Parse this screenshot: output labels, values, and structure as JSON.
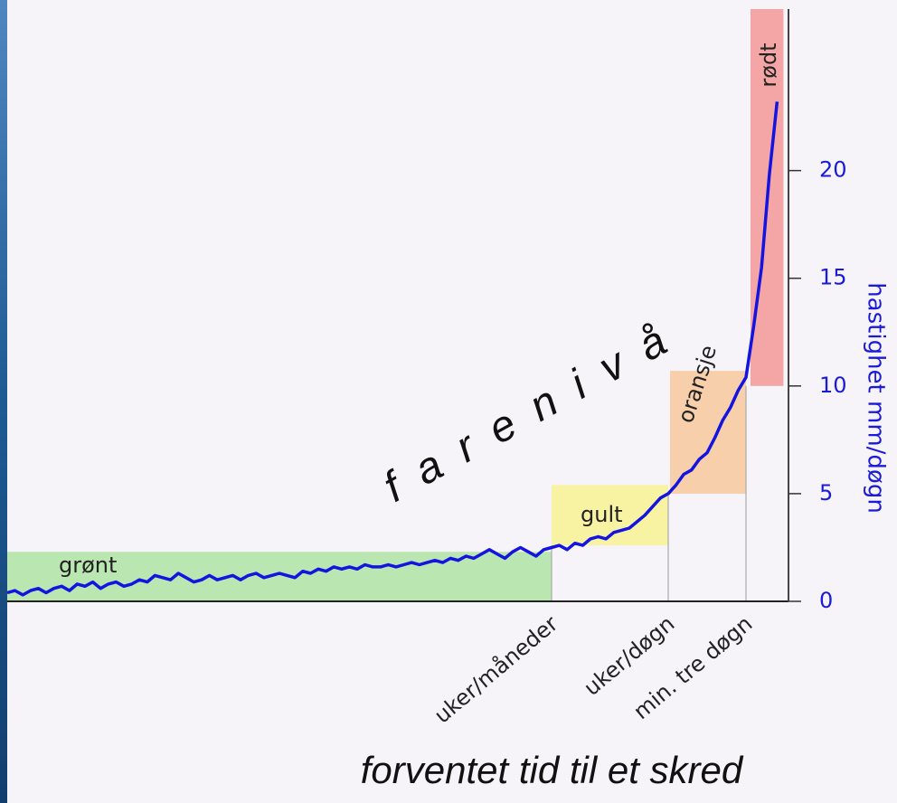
{
  "chart_data": {
    "type": "line",
    "annotation": "f a r e n i v å",
    "x_label": "forventet tid til et skred",
    "y_label": "hastighet mm/døgn",
    "categories": [
      null,
      null,
      null,
      null,
      null,
      null,
      null,
      null,
      null,
      null,
      null,
      null,
      null,
      null,
      null,
      null,
      null,
      null,
      null,
      null,
      null,
      null,
      null,
      null,
      null,
      null,
      null,
      null,
      null,
      null,
      null,
      null,
      null,
      null,
      null,
      null,
      null,
      null,
      null,
      null,
      null,
      null,
      null,
      null,
      null,
      null,
      null,
      null,
      null,
      null,
      null,
      null,
      null,
      null,
      null,
      null,
      null,
      null,
      null,
      null,
      null,
      null,
      null,
      null,
      null,
      null,
      null,
      null,
      null,
      null,
      "uker/måneder",
      null,
      null,
      null,
      null,
      null,
      null,
      null,
      null,
      null,
      null,
      null,
      null,
      null,
      null,
      "uker/døgn",
      null,
      null,
      null,
      null,
      null,
      null,
      null,
      null,
      null,
      "min. tre døgn",
      null,
      null,
      null,
      null
    ],
    "series": [
      {
        "name": null,
        "color": "#1414e0",
        "values": [
          0.4,
          0.5,
          0.3,
          0.5,
          0.6,
          0.4,
          0.6,
          0.7,
          0.5,
          0.8,
          0.7,
          0.9,
          0.6,
          0.8,
          0.9,
          0.7,
          0.8,
          1.0,
          0.9,
          1.2,
          1.1,
          1.0,
          1.3,
          1.1,
          0.9,
          1.0,
          1.2,
          1.0,
          1.1,
          1.2,
          1.0,
          1.2,
          1.3,
          1.1,
          1.2,
          1.3,
          1.2,
          1.1,
          1.4,
          1.3,
          1.5,
          1.4,
          1.6,
          1.5,
          1.6,
          1.5,
          1.7,
          1.6,
          1.6,
          1.7,
          1.6,
          1.7,
          1.8,
          1.7,
          1.8,
          1.9,
          1.8,
          2.0,
          1.9,
          2.1,
          2.0,
          2.2,
          2.4,
          2.2,
          2.0,
          2.3,
          2.5,
          2.3,
          2.1,
          2.4,
          2.5,
          2.6,
          2.4,
          2.7,
          2.6,
          2.9,
          3.0,
          2.9,
          3.2,
          3.3,
          3.4,
          3.7,
          4.0,
          4.4,
          4.8,
          5.0,
          5.4,
          5.9,
          6.1,
          6.6,
          6.9,
          7.6,
          8.4,
          9.0,
          9.8,
          10.4,
          12.8,
          15.5,
          19.8,
          23.2
        ]
      }
    ],
    "bands": [
      {
        "name": "grønt",
        "range": [
          0,
          2.3
        ],
        "color": "#b9e6b1"
      },
      {
        "name": "gult",
        "range": [
          2.6,
          5.4
        ],
        "color": "#f7f3a2"
      },
      {
        "name": "oransje",
        "range": [
          5,
          10.7
        ],
        "color": "#f7cfaa"
      },
      {
        "name": "rødt",
        "range": [
          10,
          27.5
        ],
        "color": "#f4a6a6"
      }
    ],
    "ylim": [
      0,
      27.5
    ],
    "yticks": [
      0,
      5,
      10,
      15,
      20
    ],
    "axis_color": "#1a1ad8"
  }
}
